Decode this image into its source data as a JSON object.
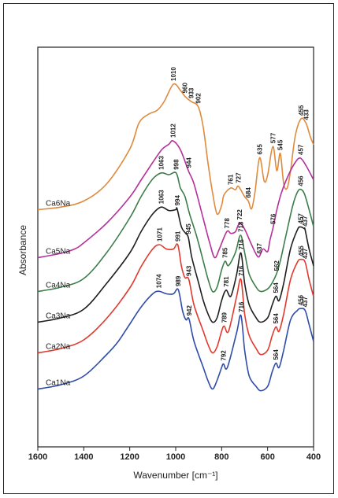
{
  "chart_data": {
    "type": "line",
    "xlabel": "Wavenumber [cm⁻¹]",
    "ylabel": "Absorbance",
    "xlim": [
      1600,
      400
    ],
    "x_reversed": true,
    "x_ticks": [
      "1600",
      "1400",
      "1200",
      "1000",
      "800",
      "600",
      "400"
    ],
    "y_ticks_shown": false,
    "series": [
      {
        "name": "Ca6Na",
        "color": "#e08a3c",
        "points": [
          [
            1600,
            0.5
          ],
          [
            1500,
            0.8
          ],
          [
            1400,
            1.5
          ],
          [
            1300,
            3.5
          ],
          [
            1200,
            7.5
          ],
          [
            1160,
            10.5
          ],
          [
            1120,
            11.5
          ],
          [
            1080,
            12
          ],
          [
            1050,
            13
          ],
          [
            1010,
            15
          ],
          [
            980,
            14.3
          ],
          [
            960,
            13.6
          ],
          [
            933,
            13
          ],
          [
            902,
            12.4
          ],
          [
            880,
            10
          ],
          [
            860,
            6
          ],
          [
            840,
            2.5
          ],
          [
            820,
            0
          ],
          [
            800,
            1
          ],
          [
            790,
            2.2
          ],
          [
            761,
            3
          ],
          [
            740,
            2.8
          ],
          [
            727,
            3.2
          ],
          [
            700,
            2
          ],
          [
            684,
            1.5
          ],
          [
            670,
            0.6
          ],
          [
            655,
            2.5
          ],
          [
            635,
            6.5
          ],
          [
            615,
            3.8
          ],
          [
            600,
            4.5
          ],
          [
            577,
            7.8
          ],
          [
            560,
            5
          ],
          [
            545,
            7
          ],
          [
            530,
            3.5
          ],
          [
            515,
            3
          ],
          [
            500,
            5
          ],
          [
            480,
            9
          ],
          [
            455,
            11
          ],
          [
            433,
            10.5
          ],
          [
            415,
            9
          ],
          [
            400,
            8
          ]
        ],
        "peaks": [
          [
            1010,
            "1010"
          ],
          [
            960,
            "960"
          ],
          [
            933,
            "933"
          ],
          [
            902,
            "902"
          ],
          [
            761,
            "761"
          ],
          [
            727,
            "727"
          ],
          [
            684,
            "684"
          ],
          [
            635,
            "635"
          ],
          [
            577,
            "577"
          ],
          [
            545,
            "545"
          ],
          [
            455,
            "455"
          ],
          [
            433,
            "433"
          ]
        ]
      },
      {
        "name": "Ca5Na",
        "color": "#b5309a",
        "points": [
          [
            1600,
            0.5
          ],
          [
            1500,
            1
          ],
          [
            1440,
            1.5
          ],
          [
            1400,
            2.2
          ],
          [
            1300,
            4.5
          ],
          [
            1200,
            7.5
          ],
          [
            1150,
            9.5
          ],
          [
            1100,
            11.5
          ],
          [
            1060,
            13
          ],
          [
            1030,
            13.6
          ],
          [
            1012,
            14
          ],
          [
            980,
            13
          ],
          [
            944,
            10.5
          ],
          [
            920,
            9
          ],
          [
            880,
            5
          ],
          [
            850,
            2
          ],
          [
            830,
            0.5
          ],
          [
            810,
            1.5
          ],
          [
            778,
            3.5
          ],
          [
            760,
            3.3
          ],
          [
            740,
            3.5
          ],
          [
            722,
            4.5
          ],
          [
            700,
            3.8
          ],
          [
            670,
            2
          ],
          [
            650,
            0.9
          ],
          [
            637,
            0.6
          ],
          [
            620,
            1.5
          ],
          [
            600,
            1.2
          ],
          [
            590,
            2.5
          ],
          [
            576,
            4
          ],
          [
            560,
            6
          ],
          [
            540,
            8
          ],
          [
            510,
            10
          ],
          [
            480,
            11.5
          ],
          [
            457,
            12
          ],
          [
            430,
            11
          ],
          [
            400,
            9.5
          ]
        ],
        "peaks": [
          [
            1012,
            "1012"
          ],
          [
            944,
            "944"
          ],
          [
            778,
            "778"
          ],
          [
            722,
            "722"
          ],
          [
            637,
            "637"
          ],
          [
            576,
            "576"
          ],
          [
            457,
            "457"
          ]
        ]
      },
      {
        "name": "Ca4Na",
        "color": "#3d7d4a",
        "points": [
          [
            1600,
            0.5
          ],
          [
            1500,
            1
          ],
          [
            1400,
            2
          ],
          [
            1300,
            5
          ],
          [
            1200,
            9
          ],
          [
            1150,
            11.5
          ],
          [
            1100,
            13.5
          ],
          [
            1063,
            14.2
          ],
          [
            1030,
            14
          ],
          [
            998,
            14.2
          ],
          [
            980,
            12.5
          ],
          [
            960,
            11.5
          ],
          [
            940,
            9.5
          ],
          [
            910,
            7
          ],
          [
            880,
            4
          ],
          [
            860,
            2
          ],
          [
            840,
            0.5
          ],
          [
            820,
            1
          ],
          [
            800,
            3
          ],
          [
            785,
            4
          ],
          [
            770,
            3.5
          ],
          [
            740,
            5
          ],
          [
            718,
            7
          ],
          [
            700,
            5
          ],
          [
            680,
            2.5
          ],
          [
            650,
            1
          ],
          [
            630,
            0.5
          ],
          [
            600,
            0.8
          ],
          [
            580,
            1.5
          ],
          [
            562,
            2.5
          ],
          [
            545,
            4
          ],
          [
            520,
            7
          ],
          [
            490,
            10.5
          ],
          [
            470,
            12
          ],
          [
            456,
            12.3
          ],
          [
            440,
            11.8
          ],
          [
            420,
            10
          ],
          [
            400,
            8
          ]
        ],
        "peaks": [
          [
            1063,
            "1063"
          ],
          [
            998,
            "998"
          ],
          [
            785,
            "785"
          ],
          [
            718,
            "718"
          ],
          [
            562,
            "562"
          ],
          [
            456,
            "456"
          ]
        ]
      },
      {
        "name": "Ca3Na",
        "color": "#1f1f1f",
        "points": [
          [
            1600,
            0.5
          ],
          [
            1500,
            1
          ],
          [
            1400,
            2
          ],
          [
            1300,
            5
          ],
          [
            1200,
            8.5
          ],
          [
            1150,
            11
          ],
          [
            1100,
            13
          ],
          [
            1063,
            13.8
          ],
          [
            1030,
            13.4
          ],
          [
            1000,
            13.5
          ],
          [
            994,
            13.6
          ],
          [
            975,
            11.5
          ],
          [
            958,
            10.8
          ],
          [
            945,
            10.3
          ],
          [
            930,
            8
          ],
          [
            900,
            5
          ],
          [
            880,
            3
          ],
          [
            860,
            1.5
          ],
          [
            840,
            0.5
          ],
          [
            820,
            1
          ],
          [
            800,
            3
          ],
          [
            781,
            4.2
          ],
          [
            760,
            3.5
          ],
          [
            735,
            6
          ],
          [
            716,
            8.5
          ],
          [
            700,
            5
          ],
          [
            680,
            2.5
          ],
          [
            650,
            1
          ],
          [
            630,
            0.5
          ],
          [
            600,
            1
          ],
          [
            580,
            2.5
          ],
          [
            564,
            3.5
          ],
          [
            550,
            3
          ],
          [
            530,
            5
          ],
          [
            500,
            9
          ],
          [
            470,
            11.2
          ],
          [
            457,
            11.5
          ],
          [
            440,
            11.3
          ],
          [
            437,
            11.2
          ],
          [
            420,
            9
          ],
          [
            400,
            7
          ]
        ],
        "peaks": [
          [
            1063,
            "1063"
          ],
          [
            994,
            "994"
          ],
          [
            945,
            "945"
          ],
          [
            781,
            "781"
          ],
          [
            716,
            "716"
          ],
          [
            564,
            "564"
          ],
          [
            457,
            "457"
          ],
          [
            437,
            "437"
          ]
        ]
      },
      {
        "name": "Ca2Na",
        "color": "#e03a2e",
        "points": [
          [
            1600,
            0.5
          ],
          [
            1500,
            1
          ],
          [
            1400,
            2
          ],
          [
            1300,
            4.5
          ],
          [
            1200,
            8
          ],
          [
            1150,
            10.5
          ],
          [
            1100,
            12.5
          ],
          [
            1071,
            13
          ],
          [
            1040,
            12.5
          ],
          [
            1010,
            12.5
          ],
          [
            991,
            13
          ],
          [
            975,
            10.5
          ],
          [
            960,
            9.2
          ],
          [
            943,
            9
          ],
          [
            920,
            6
          ],
          [
            880,
            3
          ],
          [
            860,
            1.5
          ],
          [
            840,
            0.5
          ],
          [
            820,
            1.2
          ],
          [
            800,
            3
          ],
          [
            789,
            3.6
          ],
          [
            770,
            3
          ],
          [
            735,
            7
          ],
          [
            716,
            9
          ],
          [
            700,
            5
          ],
          [
            680,
            2.5
          ],
          [
            650,
            1
          ],
          [
            630,
            0.3
          ],
          [
            600,
            0.8
          ],
          [
            580,
            2.5
          ],
          [
            564,
            3.5
          ],
          [
            550,
            3
          ],
          [
            530,
            5
          ],
          [
            500,
            9
          ],
          [
            470,
            11
          ],
          [
            455,
            11.3
          ],
          [
            437,
            11
          ],
          [
            420,
            9
          ],
          [
            400,
            7
          ]
        ],
        "peaks": [
          [
            1071,
            "1071"
          ],
          [
            991,
            "991"
          ],
          [
            943,
            "943"
          ],
          [
            789,
            "789"
          ],
          [
            716,
            "716"
          ],
          [
            564,
            "564"
          ],
          [
            455,
            "455"
          ],
          [
            437,
            "437"
          ]
        ]
      },
      {
        "name": "Ca1Na",
        "color": "#2f4ca8",
        "points": [
          [
            1600,
            0.5
          ],
          [
            1500,
            1
          ],
          [
            1400,
            2
          ],
          [
            1300,
            4.5
          ],
          [
            1250,
            6
          ],
          [
            1200,
            8
          ],
          [
            1150,
            10
          ],
          [
            1100,
            11.5
          ],
          [
            1074,
            11.8
          ],
          [
            1040,
            11.5
          ],
          [
            1010,
            11.5
          ],
          [
            989,
            12
          ],
          [
            970,
            9.5
          ],
          [
            955,
            8.5
          ],
          [
            942,
            8.6
          ],
          [
            920,
            6
          ],
          [
            880,
            3
          ],
          [
            860,
            1.5
          ],
          [
            840,
            0.5
          ],
          [
            820,
            1.5
          ],
          [
            800,
            3
          ],
          [
            792,
            3.4
          ],
          [
            775,
            3
          ],
          [
            735,
            7
          ],
          [
            716,
            9
          ],
          [
            700,
            5
          ],
          [
            680,
            2
          ],
          [
            650,
            0.8
          ],
          [
            630,
            0.3
          ],
          [
            600,
            0.8
          ],
          [
            580,
            2.5
          ],
          [
            564,
            3.5
          ],
          [
            550,
            3
          ],
          [
            530,
            5
          ],
          [
            500,
            8.5
          ],
          [
            470,
            9.6
          ],
          [
            456,
            9.8
          ],
          [
            437,
            9.6
          ],
          [
            420,
            8
          ],
          [
            400,
            6
          ]
        ],
        "peaks": [
          [
            1074,
            "1074"
          ],
          [
            989,
            "989"
          ],
          [
            942,
            "942"
          ],
          [
            792,
            "792"
          ],
          [
            716,
            "716"
          ],
          [
            564,
            "564"
          ],
          [
            456,
            "456"
          ],
          [
            437,
            "437"
          ]
        ]
      }
    ]
  }
}
